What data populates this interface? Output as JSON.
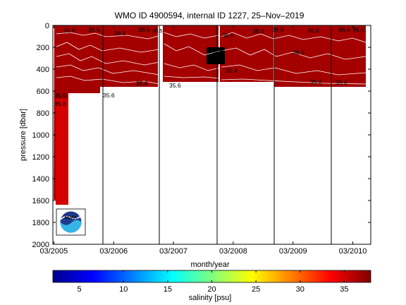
{
  "chart_data": {
    "type": "heatmap",
    "title": "WMO ID 4900594, internal ID 1227, 25–Nov–2019",
    "xlabel": "month/year",
    "ylabel": "pressure [dbar]",
    "x_ticks": [
      "03/2005",
      "03/2006",
      "03/2007",
      "03/2008",
      "03/2009",
      "03/2010"
    ],
    "y_ticks": [
      0,
      200,
      400,
      600,
      800,
      1000,
      1200,
      1400,
      1600,
      1800,
      2000
    ],
    "ylim": [
      2000,
      0
    ],
    "y_reversed": true,
    "colorbar": {
      "label": "salinity [psu]",
      "ticks": [
        5,
        10,
        15,
        20,
        25,
        30,
        35
      ],
      "range": [
        2,
        38
      ],
      "colormap": "jet"
    },
    "fill_color": "#a50000",
    "gap_color": "#000000",
    "year_lines": [
      "03/2006",
      "11/2006",
      "11/2007",
      "11/2008",
      "11/2009"
    ],
    "contour_labels": [
      {
        "text": "36.6",
        "x": "04/2005",
        "y": 45
      },
      {
        "text": "36.5",
        "x": "12/2005",
        "y": 40
      },
      {
        "text": "36.6",
        "x": "05/2006",
        "y": 65
      },
      {
        "text": "36.6",
        "x": "09/2006",
        "y": 40
      },
      {
        "text": "36.5",
        "x": "10/2007",
        "y": 40
      },
      {
        "text": "36.5",
        "x": "12/2007",
        "y": 80
      },
      {
        "text": "36.6",
        "x": "01/2008",
        "y": 260
      },
      {
        "text": "36.4",
        "x": "01/2008",
        "y": 400
      },
      {
        "text": "36.6",
        "x": "07/2008",
        "y": 55
      },
      {
        "text": "36.5",
        "x": "09/2008",
        "y": 40
      },
      {
        "text": "36.6",
        "x": "04/2009",
        "y": 280
      },
      {
        "text": "36.6",
        "x": "05/2009",
        "y": 40
      },
      {
        "text": "36.6",
        "x": "11/2009",
        "y": 40
      },
      {
        "text": "36.6",
        "x": "04/2010",
        "y": 40
      },
      {
        "text": "35.6",
        "x": "11/2006",
        "y": 505
      },
      {
        "text": "35.6",
        "x": "04/2007",
        "y": 525
      },
      {
        "text": "35.6",
        "x": "02/2009",
        "y": 505
      },
      {
        "text": "35.6",
        "x": "01/2010",
        "y": 510
      },
      {
        "text": "35.6",
        "x": "03/2006",
        "y": 625
      },
      {
        "text": "35.6",
        "x": "03/2005",
        "y": 635
      },
      {
        "text": "35.6",
        "x": "03/2005",
        "y": 700
      }
    ]
  }
}
